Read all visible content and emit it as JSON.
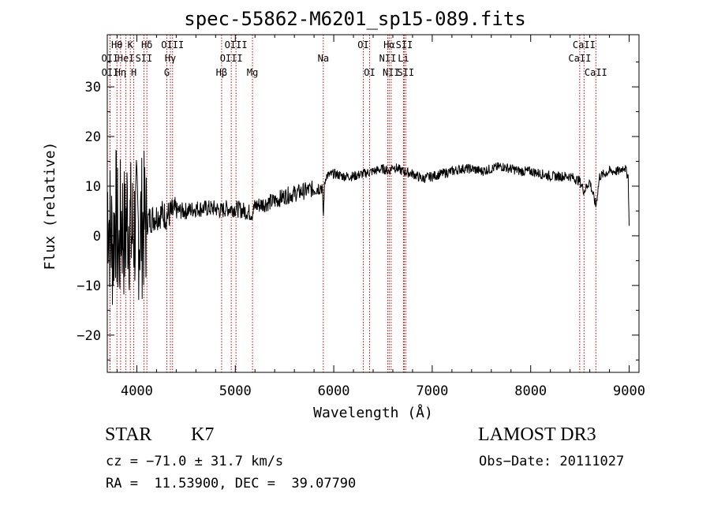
{
  "chart_data": {
    "type": "line",
    "title": "spec-55862-M6201_sp15-089.fits",
    "xlabel": "Wavelength (Å)",
    "ylabel": "Flux (relative)",
    "xlim": [
      3700,
      9100
    ],
    "ylim": [
      -27.5,
      40.5
    ],
    "xticks": [
      4000,
      5000,
      6000,
      7000,
      8000,
      9000
    ],
    "xtick_labels": [
      "4000",
      "5000",
      "6000",
      "7000",
      "8000",
      "9000"
    ],
    "yticks": [
      -20,
      -10,
      0,
      10,
      20,
      30
    ],
    "ytick_labels": [
      "−20",
      "−10",
      "0",
      "10",
      "20",
      "30"
    ],
    "grid": false,
    "series": [
      {
        "name": "spectrum",
        "x": [
          3700,
          3720,
          3740,
          3760,
          3780,
          3800,
          3820,
          3840,
          3860,
          3880,
          3900,
          3920,
          3950,
          3980,
          4000,
          4050,
          4100,
          4150,
          4200,
          4250,
          4300,
          4350,
          4400,
          4500,
          4600,
          4700,
          4800,
          4860,
          4900,
          5000,
          5100,
          5170,
          5200,
          5300,
          5400,
          5500,
          5600,
          5700,
          5800,
          5880,
          5895,
          5905,
          5920,
          6000,
          6100,
          6200,
          6300,
          6400,
          6500,
          6563,
          6600,
          6700,
          6800,
          6900,
          7000,
          7100,
          7200,
          7300,
          7400,
          7500,
          7600,
          7700,
          7800,
          7900,
          8000,
          8100,
          8200,
          8300,
          8400,
          8498,
          8542,
          8600,
          8662,
          8700,
          8800,
          8900,
          8950,
          8990,
          9000
        ],
        "values": [
          8,
          3,
          0,
          -2,
          6,
          1,
          -4,
          4,
          2,
          -1,
          5,
          3,
          0,
          2,
          1,
          2,
          3,
          3.5,
          4,
          4.5,
          4,
          4.5,
          5,
          5,
          5.5,
          5.5,
          5.5,
          5,
          5.5,
          5.5,
          5,
          4.5,
          6,
          6.5,
          7,
          8,
          8.5,
          9,
          9.5,
          10,
          4,
          10,
          12,
          12.5,
          12,
          12,
          12.5,
          13,
          13.5,
          13,
          14,
          13,
          12.5,
          11.5,
          12,
          12.5,
          13,
          13.5,
          13.5,
          13,
          13.5,
          14,
          13.5,
          13,
          13,
          12.5,
          12,
          12,
          12,
          11,
          9,
          11,
          6,
          12,
          13,
          13,
          14,
          12,
          2
        ]
      }
    ],
    "lines": [
      {
        "name": "OII",
        "wavelength": 3727,
        "row": 2
      },
      {
        "name": "OII",
        "wavelength": 3728,
        "row": 3
      },
      {
        "name": "Hθ",
        "wavelength": 3798,
        "row": 1
      },
      {
        "name": "Hη",
        "wavelength": 3835,
        "row": 3
      },
      {
        "name": "HeI",
        "wavelength": 3889,
        "row": 2
      },
      {
        "name": "K",
        "wavelength": 3934,
        "row": 1
      },
      {
        "name": "H",
        "wavelength": 3969,
        "row": 3
      },
      {
        "name": "SII",
        "wavelength": 4072,
        "row": 2
      },
      {
        "name": "Hδ",
        "wavelength": 4102,
        "row": 1
      },
      {
        "name": "OIII",
        "wavelength": 4363,
        "row": 1
      },
      {
        "name": "Hγ",
        "wavelength": 4341,
        "row": 2
      },
      {
        "name": "G",
        "wavelength": 4305,
        "row": 3
      },
      {
        "name": "Hβ",
        "wavelength": 4861,
        "row": 3
      },
      {
        "name": "OIII",
        "wavelength": 4959,
        "row": 2
      },
      {
        "name": "OIII",
        "wavelength": 5007,
        "row": 1
      },
      {
        "name": "Mg",
        "wavelength": 5175,
        "row": 3
      },
      {
        "name": "Na",
        "wavelength": 5894,
        "row": 2
      },
      {
        "name": "OI",
        "wavelength": 6300,
        "row": 1
      },
      {
        "name": "OI",
        "wavelength": 6364,
        "row": 3
      },
      {
        "name": "Hα",
        "wavelength": 6563,
        "row": 1
      },
      {
        "name": "NII",
        "wavelength": 6548,
        "row": 2
      },
      {
        "name": "NII",
        "wavelength": 6583,
        "row": 3
      },
      {
        "name": "SII",
        "wavelength": 6716,
        "row": 1
      },
      {
        "name": "Li",
        "wavelength": 6708,
        "row": 2
      },
      {
        "name": "SII",
        "wavelength": 6731,
        "row": 3
      },
      {
        "name": "CaII",
        "wavelength": 8542,
        "row": 1
      },
      {
        "name": "CaII",
        "wavelength": 8498,
        "row": 2
      },
      {
        "name": "CaII",
        "wavelength": 8662,
        "row": 3
      }
    ],
    "colors": {
      "spectrum": "#000000",
      "line_markers": "#cc0000"
    }
  },
  "footer": {
    "class_label": "STAR",
    "subclass": "K7",
    "survey": "LAMOST DR3",
    "cz": "cz = −71.0 ± 31.7 km/s",
    "obs_date": "Obs−Date: 20111027",
    "radec": "RA =  11.53900, DEC =  39.07790"
  }
}
